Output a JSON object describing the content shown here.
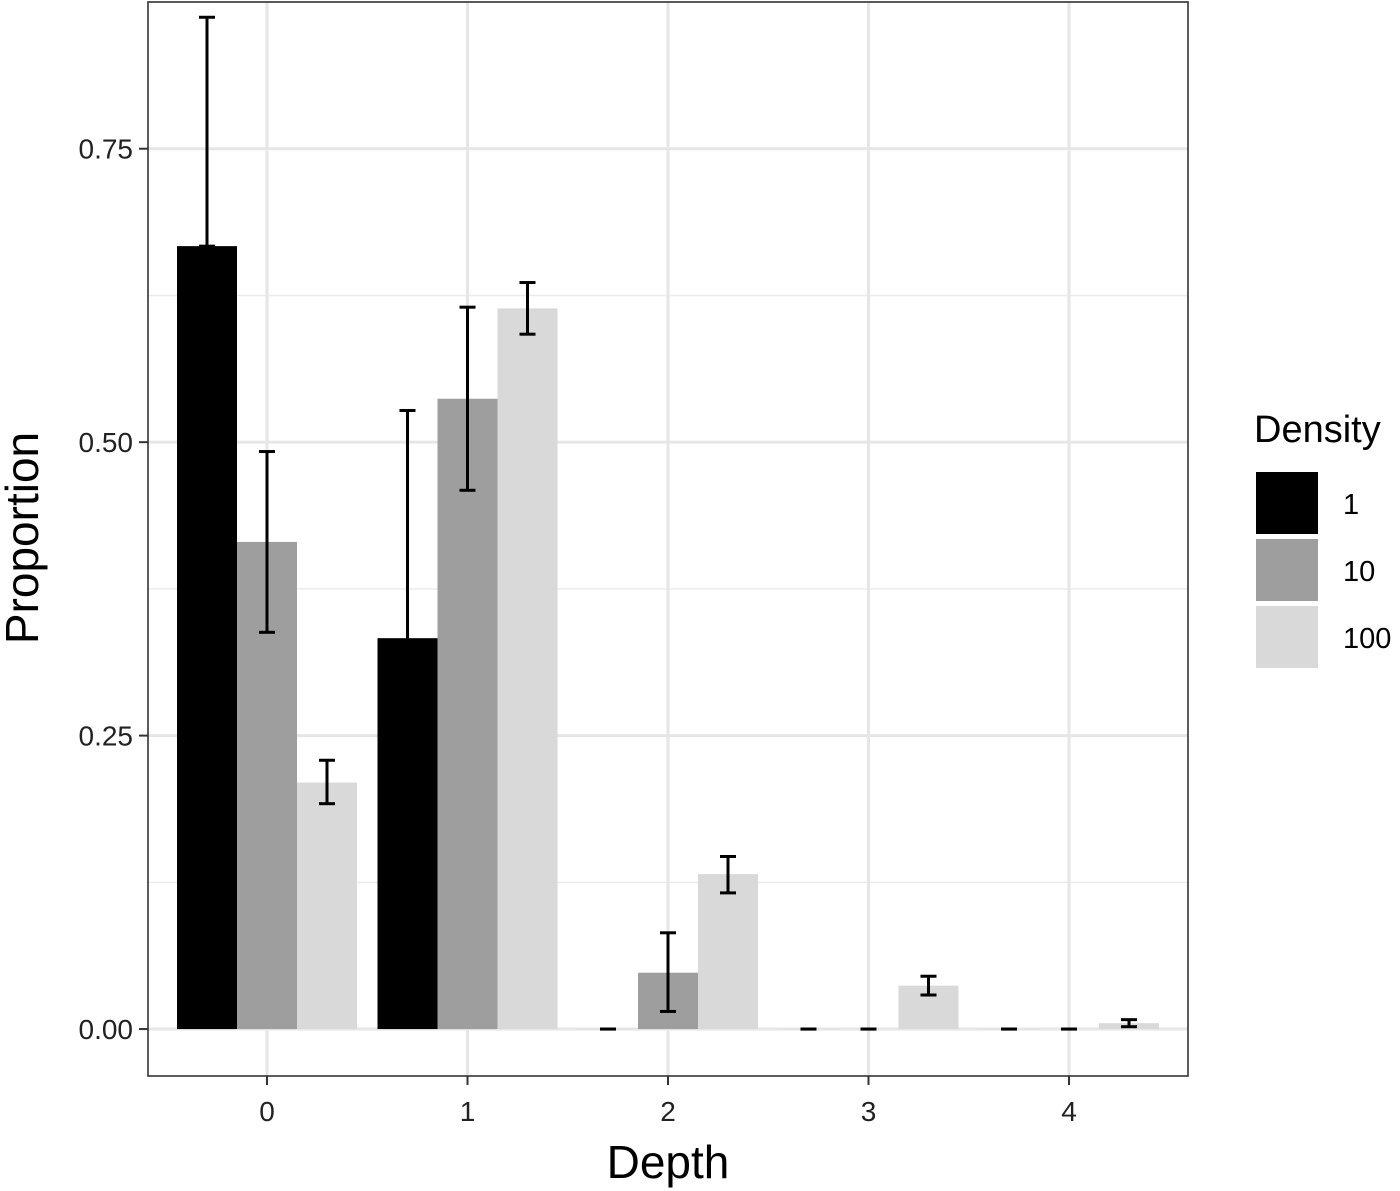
{
  "chart_data": {
    "type": "bar",
    "xlabel": "Depth",
    "ylabel": "Proportion",
    "categories": [
      "0",
      "1",
      "2",
      "3",
      "4"
    ],
    "ylim": [
      -0.04,
      0.875
    ],
    "yticks": [
      0.0,
      0.25,
      0.5,
      0.75
    ],
    "ytick_labels": [
      "0.00",
      "0.25",
      "0.50",
      "0.75"
    ],
    "grid": true,
    "legend": {
      "title": "Density",
      "placement": "right"
    },
    "series": [
      {
        "name": "1",
        "color": "#000000",
        "values": [
          0.667,
          0.333,
          0.0,
          0.0,
          0.0
        ],
        "err_low": [
          0.667,
          0.14,
          0.0,
          0.0,
          0.0
        ],
        "err_high": [
          0.862,
          0.527,
          0.0,
          0.0,
          0.0
        ]
      },
      {
        "name": "10",
        "color": "#9e9e9e",
        "values": [
          0.415,
          0.537,
          0.048,
          0.0,
          0.0
        ],
        "err_low": [
          0.338,
          0.459,
          0.015,
          0.0,
          0.0
        ],
        "err_high": [
          0.492,
          0.615,
          0.082,
          0.0,
          0.0
        ]
      },
      {
        "name": "100",
        "color": "#d9d9d9",
        "values": [
          0.21,
          0.614,
          0.132,
          0.037,
          0.005
        ],
        "err_low": [
          0.192,
          0.592,
          0.116,
          0.029,
          0.002
        ],
        "err_high": [
          0.229,
          0.636,
          0.147,
          0.045,
          0.008
        ]
      }
    ]
  }
}
